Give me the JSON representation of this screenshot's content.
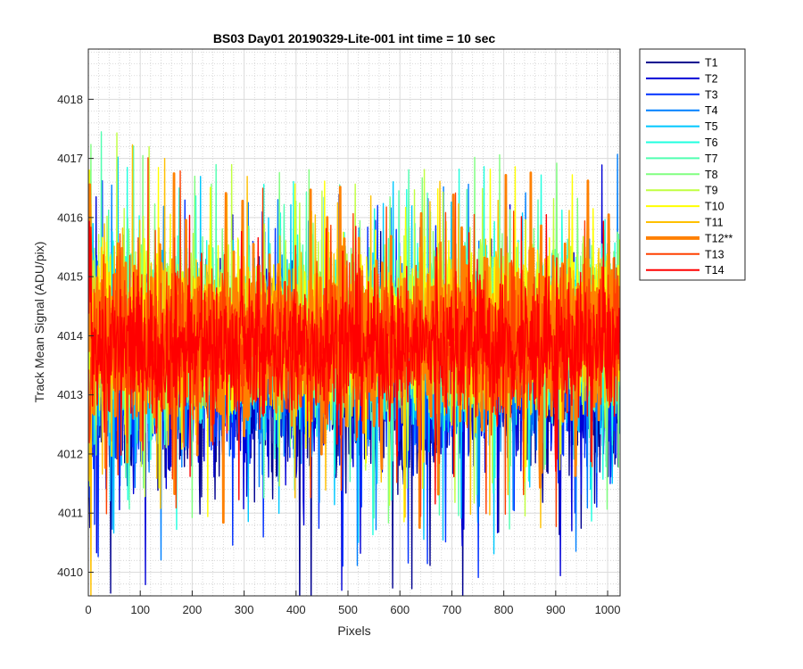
{
  "chart_data": {
    "type": "line",
    "title": "BS03 Day01 20190329-Lite-001 int time = 10 sec",
    "xlabel": "Pixels",
    "ylabel": "Track Mean Signal (ADU/pix)",
    "xlim": [
      0,
      1024
    ],
    "ylim": [
      4009.6,
      4018.85
    ],
    "x_ticks": [
      0,
      100,
      200,
      300,
      400,
      500,
      600,
      700,
      800,
      900,
      1000
    ],
    "y_ticks": [
      4010,
      4011,
      4012,
      4013,
      4014,
      4015,
      4016,
      4017,
      4018
    ],
    "grid": true,
    "minor_grid": true,
    "legend_position": "outside-right",
    "n_points_per_series": 1024,
    "series": [
      {
        "name": "T1",
        "color": "#00008F",
        "mean": 4013.2,
        "spread": 1.55,
        "bold": false
      },
      {
        "name": "T2",
        "color": "#0000D6",
        "mean": 4013.3,
        "spread": 1.5,
        "bold": false
      },
      {
        "name": "T3",
        "color": "#0030FF",
        "mean": 4013.4,
        "spread": 1.45,
        "bold": false
      },
      {
        "name": "T4",
        "color": "#0080FF",
        "mean": 4013.6,
        "spread": 1.45,
        "bold": false
      },
      {
        "name": "T5",
        "color": "#00C8FF",
        "mean": 4013.8,
        "spread": 1.45,
        "bold": false
      },
      {
        "name": "T6",
        "color": "#20FFDF",
        "mean": 4014.0,
        "spread": 1.4,
        "bold": false
      },
      {
        "name": "T7",
        "color": "#50FFB0",
        "mean": 4014.1,
        "spread": 1.4,
        "bold": false
      },
      {
        "name": "T8",
        "color": "#80FF80",
        "mean": 4014.2,
        "spread": 1.4,
        "bold": false
      },
      {
        "name": "T9",
        "color": "#C0FF40",
        "mean": 4014.2,
        "spread": 1.35,
        "bold": false
      },
      {
        "name": "T10",
        "color": "#FFFF00",
        "mean": 4014.1,
        "spread": 1.35,
        "bold": false
      },
      {
        "name": "T11",
        "color": "#FFC000",
        "mean": 4014.0,
        "spread": 1.35,
        "bold": false
      },
      {
        "name": "T12**",
        "color": "#FF8000",
        "mean": 4014.0,
        "spread": 1.35,
        "bold": true
      },
      {
        "name": "T13",
        "color": "#FF4000",
        "mean": 4013.9,
        "spread": 1.3,
        "bold": false
      },
      {
        "name": "T14",
        "color": "#FF0000",
        "mean": 4013.8,
        "spread": 1.1,
        "bold": false
      }
    ]
  }
}
